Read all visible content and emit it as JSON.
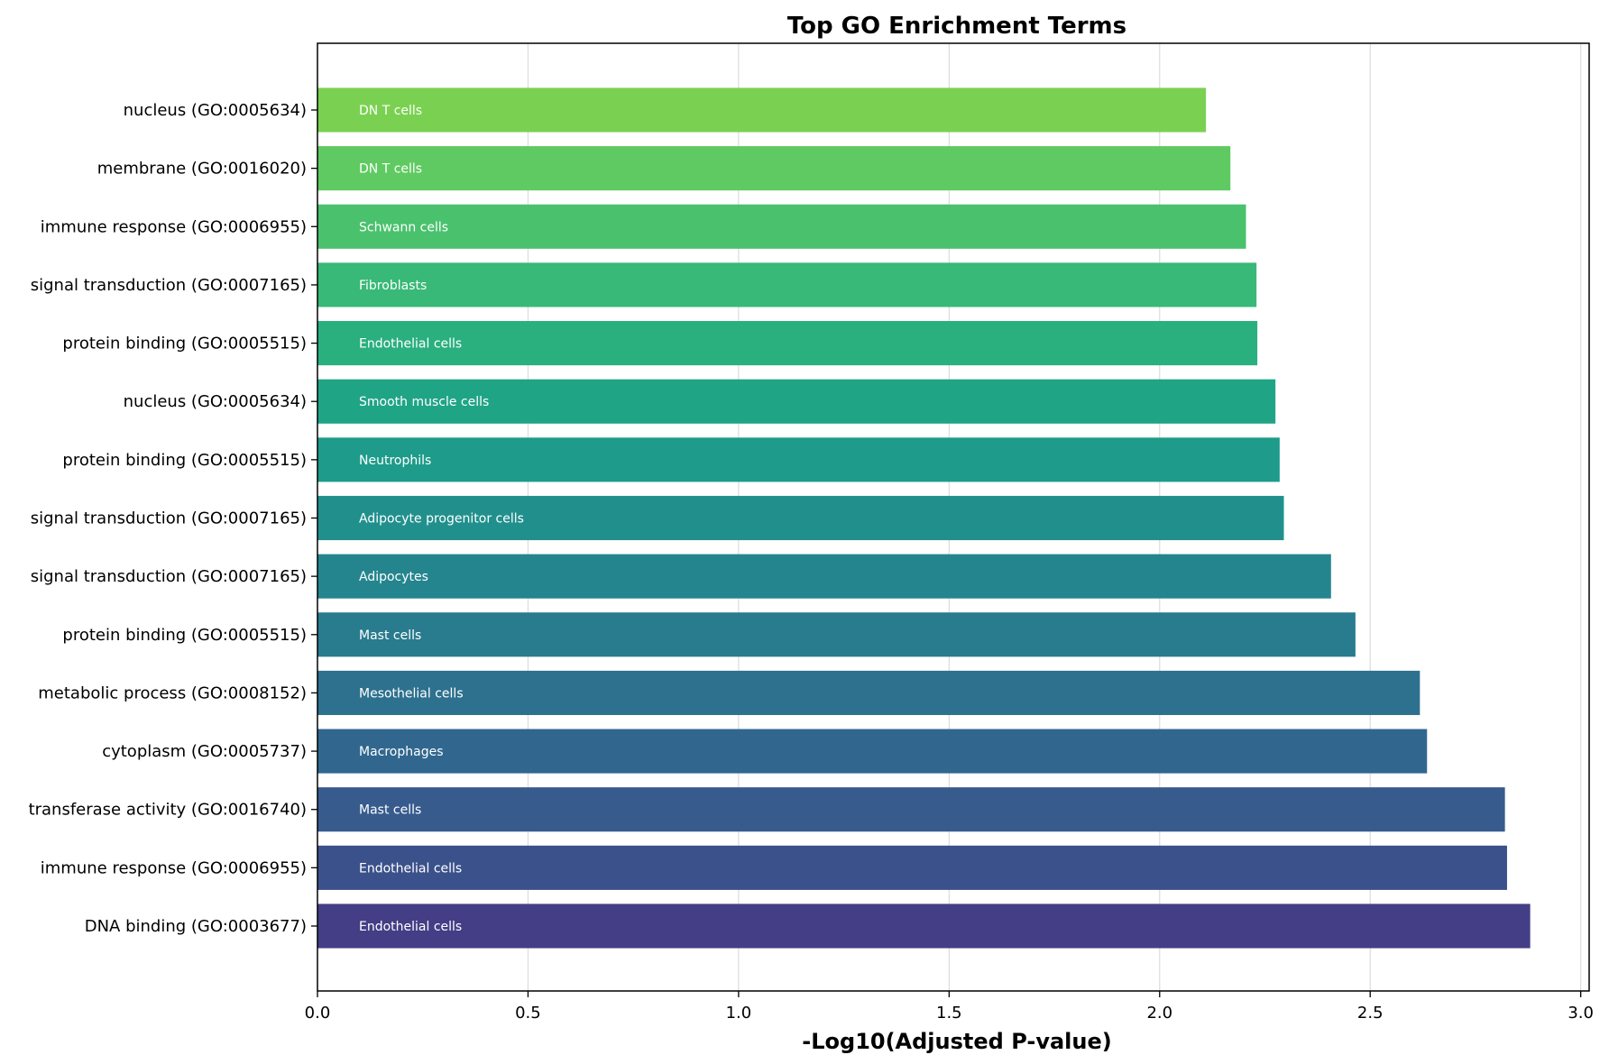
{
  "chart_data": {
    "type": "bar",
    "orientation": "horizontal",
    "title": "Top GO Enrichment Terms",
    "xlabel": "-Log10(Adjusted P-value)",
    "ylabel": "",
    "xlim": [
      0,
      3.02
    ],
    "xticks": [
      "0.0",
      "0.5",
      "1.0",
      "1.5",
      "2.0",
      "2.5",
      "3.0"
    ],
    "grid": "x",
    "bars": [
      {
        "term": "DNA binding (GO:0003677)",
        "value": 2.88,
        "cell_type": "Endothelial cells",
        "color": "#433e85"
      },
      {
        "term": "immune response (GO:0006955)",
        "value": 2.825,
        "cell_type": "Endothelial cells",
        "color": "#3b518b"
      },
      {
        "term": "transferase activity (GO:0016740)",
        "value": 2.82,
        "cell_type": "Mast cells",
        "color": "#375b8d"
      },
      {
        "term": "cytoplasm (GO:0005737)",
        "value": 2.635,
        "cell_type": "Macrophages",
        "color": "#31678e"
      },
      {
        "term": "metabolic process (GO:0008152)",
        "value": 2.618,
        "cell_type": "Mesothelial cells",
        "color": "#2d718e"
      },
      {
        "term": "protein binding (GO:0005515)",
        "value": 2.465,
        "cell_type": "Mast cells",
        "color": "#297b8e"
      },
      {
        "term": "signal transduction (GO:0007165)",
        "value": 2.407,
        "cell_type": "Adipocytes",
        "color": "#25858e"
      },
      {
        "term": "signal transduction (GO:0007165)",
        "value": 2.295,
        "cell_type": "Adipocyte progenitor cells",
        "color": "#21908d"
      },
      {
        "term": "protein binding (GO:0005515)",
        "value": 2.285,
        "cell_type": "Neutrophils",
        "color": "#1e9b8a"
      },
      {
        "term": "nucleus (GO:0005634)",
        "value": 2.275,
        "cell_type": "Smooth muscle cells",
        "color": "#20a486"
      },
      {
        "term": "protein binding (GO:0005515)",
        "value": 2.232,
        "cell_type": "Endothelial cells",
        "color": "#2aaf7f"
      },
      {
        "term": "signal transduction (GO:0007165)",
        "value": 2.23,
        "cell_type": "Fibroblasts",
        "color": "#38b977"
      },
      {
        "term": "immune response (GO:0006955)",
        "value": 2.205,
        "cell_type": "Schwann cells",
        "color": "#4ac16d"
      },
      {
        "term": "membrane (GO:0016020)",
        "value": 2.168,
        "cell_type": "DN T cells",
        "color": "#5fca61"
      },
      {
        "term": "nucleus (GO:0005634)",
        "value": 2.11,
        "cell_type": "DN T cells",
        "color": "#7ad151"
      }
    ]
  }
}
